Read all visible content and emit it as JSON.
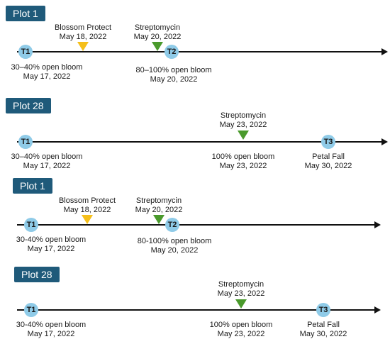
{
  "panels": [
    {
      "label": "Plot 1",
      "events_above": [
        {
          "name": "Blossom Protect",
          "date": "May 18, 2022",
          "color": "#f5bf1a"
        },
        {
          "name": "Streptomycin",
          "date": "May 20, 2022",
          "color": "#4a9a2c"
        }
      ],
      "markers": [
        {
          "label": "T1",
          "desc": "30–40% open bloom",
          "date": "May 17, 2022"
        },
        {
          "label": "T2",
          "desc": "80–100% open bloom",
          "date": "May 20, 2022"
        }
      ]
    },
    {
      "label": "Plot 28",
      "events_above": [
        {
          "name": "Streptomycin",
          "date": "May 23, 2022",
          "color": "#4a9a2c"
        }
      ],
      "markers": [
        {
          "label": "T1",
          "desc": "30–40% open bloom",
          "date": "May 17, 2022"
        },
        {
          "label": "",
          "desc": "100% open bloom",
          "date": "May 23, 2022"
        },
        {
          "label": "T3",
          "desc": "Petal Fall",
          "date": "May 30, 2022"
        }
      ]
    },
    {
      "label": "Plot 1",
      "events_above": [
        {
          "name": "Blossom Protect",
          "date": "May 18, 2022",
          "color": "#f5bf1a"
        },
        {
          "name": "Streptomycin",
          "date": "May 20, 2022",
          "color": "#4a9a2c"
        }
      ],
      "markers": [
        {
          "label": "T1",
          "desc": "30-40% open bloom",
          "date": "May 17, 2022"
        },
        {
          "label": "T2",
          "desc": "80-100% open bloom",
          "date": "May 20, 2022"
        }
      ]
    },
    {
      "label": "Plot 28",
      "events_above": [
        {
          "name": "Streptomycin",
          "date": "May 23, 2022",
          "color": "#4a9a2c"
        }
      ],
      "markers": [
        {
          "label": "T1",
          "desc": "30-40% open bloom",
          "date": "May 17, 2022"
        },
        {
          "label": "",
          "desc": "100% open bloom",
          "date": "May 23, 2022"
        },
        {
          "label": "T3",
          "desc": "Petal Fall",
          "date": "May 30, 2022"
        }
      ]
    }
  ]
}
